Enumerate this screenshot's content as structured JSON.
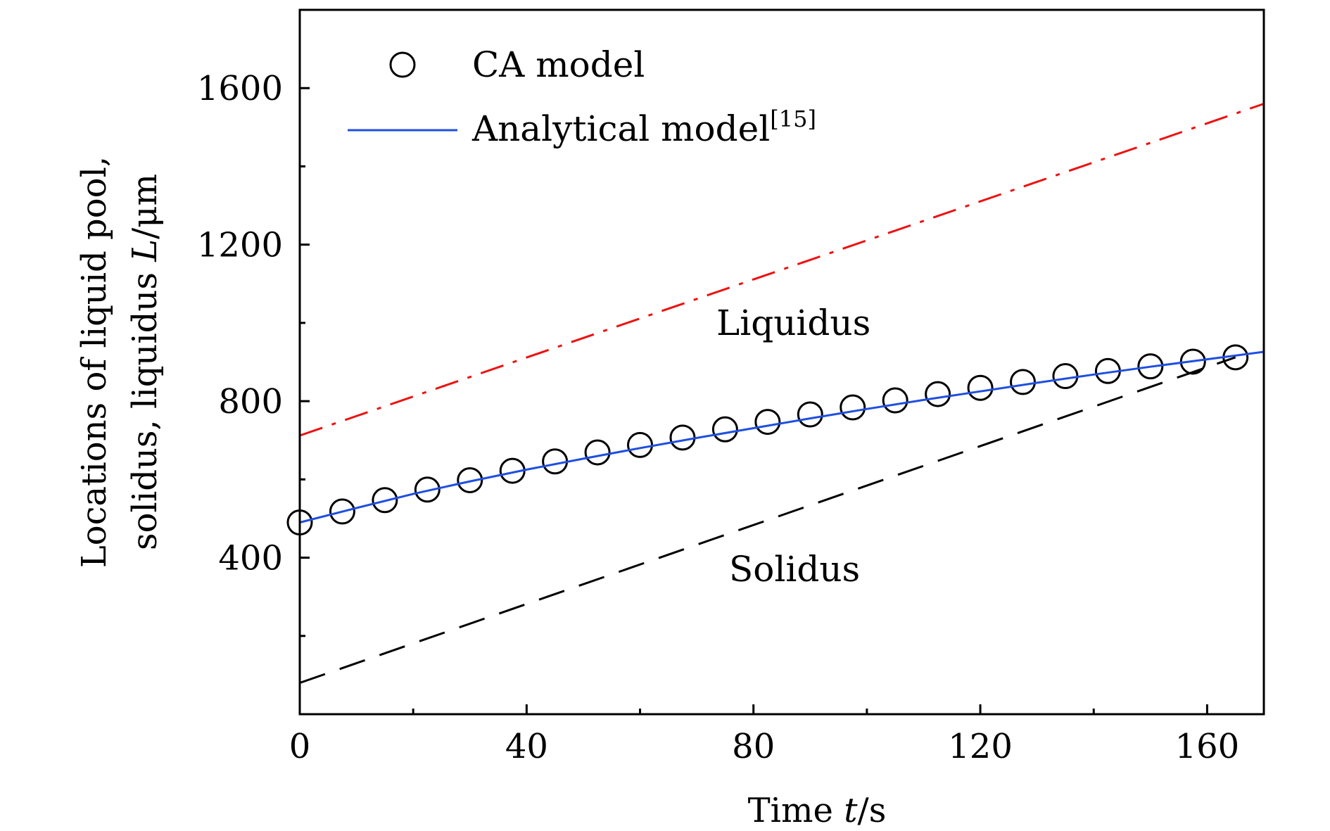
{
  "chart_data": {
    "type": "line",
    "xlabel": "Time",
    "xlabel_var": "t",
    "xlabel_unit": "/s",
    "ylabel_line1": "Locations of liquid pool,",
    "ylabel_line2": "solidus, liquidus",
    "ylabel_var": "L",
    "ylabel_unit": "/μm",
    "xlim": [
      0,
      170
    ],
    "ylim": [
      0,
      1800
    ],
    "xticks": [
      0,
      40,
      80,
      120,
      160
    ],
    "xtick_labels": [
      "0",
      "40",
      "80",
      "120",
      "160"
    ],
    "yticks": [
      400,
      800,
      1200,
      1600
    ],
    "ytick_labels": [
      "400",
      "800",
      "1200",
      "1600"
    ],
    "x_minor_ticks": [
      20,
      60,
      100,
      140
    ],
    "y_minor_ticks": [
      200,
      600,
      1000,
      1400
    ],
    "grid": false,
    "legend_position": "top-left",
    "legend": {
      "ca_label": "CA model",
      "analytical_label": "Analytical model",
      "analytical_superscript": "[15]"
    },
    "annotations": {
      "liquidus": "Liquidus",
      "solidus": "Solidus"
    },
    "colors": {
      "analytical": "#1f4fe0",
      "liquidus": "#ee1111",
      "solidus": "#000000",
      "markers": "#000000"
    },
    "series": [
      {
        "name": "CA model",
        "style": "markers",
        "x": [
          0,
          7.5,
          15,
          22.5,
          30,
          37.5,
          45,
          52.5,
          60,
          67.5,
          75,
          82.5,
          90,
          97.5,
          105,
          112.5,
          120,
          127.5,
          135,
          142.5,
          150,
          157.5,
          165
        ],
        "y": [
          490,
          518,
          547,
          574,
          598,
          622,
          646,
          669,
          688,
          707,
          728,
          747,
          766,
          784,
          802,
          818,
          834,
          849,
          864,
          877,
          889,
          901,
          912
        ]
      },
      {
        "name": "Analytical model",
        "style": "solid",
        "x": [
          0,
          10,
          20,
          30,
          40,
          50,
          60,
          70,
          80,
          90,
          100,
          110,
          120,
          130,
          140,
          150,
          160,
          170
        ],
        "y": [
          490,
          527,
          563,
          595,
          625,
          653,
          680,
          706,
          731,
          756,
          780,
          803,
          825,
          847,
          868,
          888,
          907,
          926
        ]
      },
      {
        "name": "Liquidus",
        "style": "dashdot",
        "x": [
          0,
          170
        ],
        "y": [
          712,
          1560
        ]
      },
      {
        "name": "Solidus",
        "style": "dashed",
        "x": [
          0,
          165
        ],
        "y": [
          80,
          912
        ]
      }
    ]
  }
}
